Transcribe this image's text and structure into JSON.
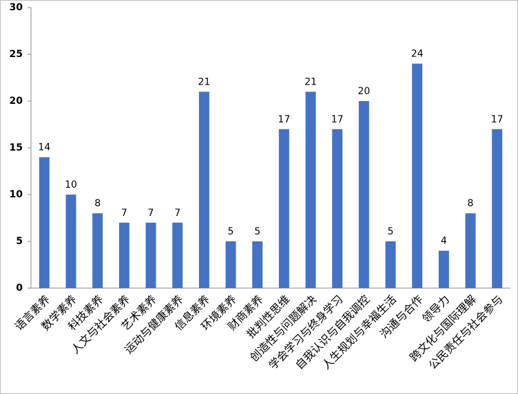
{
  "chart_data": {
    "type": "bar",
    "categories": [
      "语言素养",
      "数学素养",
      "科技素养",
      "人文与社会素养",
      "艺术素养",
      "运动与健康素养",
      "信息素养",
      "环境素养",
      "财商素养",
      "批判性思维",
      "创造性与问题解决",
      "学会学习与终身学习",
      "自我认识与自我调控",
      "人生规划与幸福生活",
      "沟通与合作",
      "领导力",
      "跨文化与国际理解",
      "公民责任与社会参与"
    ],
    "values": [
      14,
      10,
      8,
      7,
      7,
      7,
      21,
      5,
      5,
      17,
      21,
      17,
      20,
      5,
      24,
      4,
      8,
      17
    ],
    "color": "#4472c4",
    "ylim": [
      0,
      30
    ],
    "yticks": [
      0,
      5,
      10,
      15,
      20,
      25,
      30
    ],
    "grid": false
  }
}
